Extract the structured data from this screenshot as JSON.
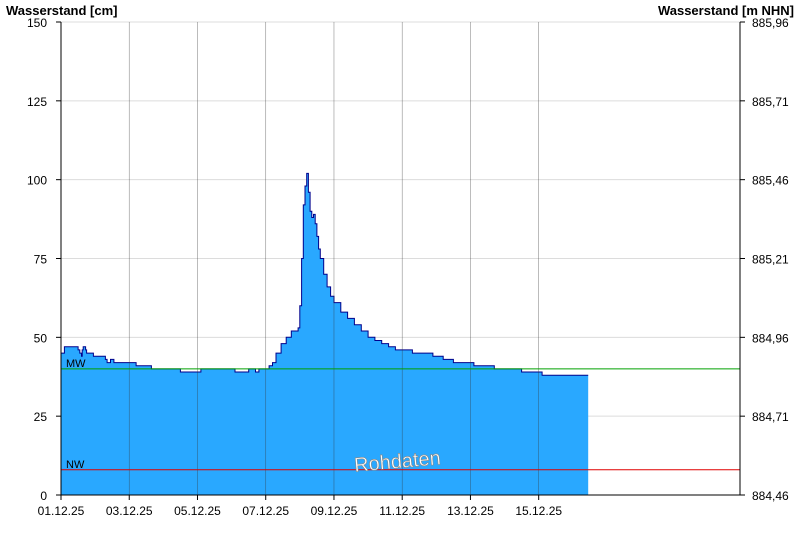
{
  "header": {
    "left_axis_title": "Wasserstand [cm]",
    "right_axis_title": "Wasserstand [m NHN]"
  },
  "chart_data": {
    "type": "area",
    "ylim": [
      0,
      150
    ],
    "y_ticks": [
      0,
      25,
      50,
      75,
      100,
      125,
      150
    ],
    "y_tick_labels": [
      "0",
      "25",
      "50",
      "75",
      "100",
      "125",
      "150"
    ],
    "y2_ticks": [
      0,
      25,
      50,
      75,
      100,
      125,
      150
    ],
    "y2_tick_labels": [
      "884,46",
      "884,71",
      "884,96",
      "885,21",
      "885,46",
      "885,71",
      "885,96"
    ],
    "x_range_days": [
      1.0,
      20.9
    ],
    "x_ticks": [
      1,
      3,
      5,
      7,
      9,
      11,
      13,
      15
    ],
    "x_tick_labels": [
      "01.12.25",
      "03.12.25",
      "05.12.25",
      "07.12.25",
      "09.12.25",
      "11.12.25",
      "13.12.25",
      "15.12.25"
    ],
    "series": [
      {
        "x": [
          1.0,
          1.1,
          1.15,
          1.45,
          1.5,
          1.55,
          1.6,
          1.62,
          1.65,
          1.7,
          1.72,
          1.75,
          1.85,
          1.95,
          2.05,
          2.3,
          2.35,
          2.45,
          2.55,
          2.65,
          2.8,
          3.0,
          3.2,
          3.5,
          3.65,
          3.75,
          4.0,
          4.5,
          4.7,
          5.0,
          5.1,
          5.5,
          5.9,
          6.1,
          6.35,
          6.5,
          6.7,
          6.8,
          7.0,
          7.1,
          7.2,
          7.3,
          7.45,
          7.6,
          7.75,
          7.85,
          7.95,
          8.0,
          8.05,
          8.1,
          8.15,
          8.2,
          8.25,
          8.3,
          8.35,
          8.4,
          8.45,
          8.5,
          8.55,
          8.6,
          8.7,
          8.8,
          8.9,
          9.0,
          9.2,
          9.4,
          9.6,
          9.8,
          10.0,
          10.2,
          10.4,
          10.6,
          10.8,
          11.0,
          11.3,
          11.6,
          11.9,
          12.2,
          12.5,
          12.8,
          13.1,
          13.5,
          13.7,
          14.0,
          14.3,
          14.5,
          14.8,
          15.0,
          15.1,
          16.45
        ],
        "values": [
          45,
          47,
          47,
          47,
          46,
          45,
          44,
          46,
          47,
          47,
          46,
          45,
          45,
          44,
          44,
          43,
          42,
          43,
          42,
          42,
          42,
          42,
          41,
          41,
          40,
          40,
          40,
          39,
          39,
          39,
          40,
          40,
          40,
          39,
          39,
          40,
          39,
          40,
          40,
          41,
          42,
          45,
          48,
          50,
          52,
          52,
          53,
          60,
          75,
          92,
          98,
          102,
          96,
          90,
          88,
          89,
          86,
          82,
          78,
          75,
          70,
          66,
          63,
          61,
          58,
          56,
          54,
          52,
          50,
          49,
          48,
          47,
          46,
          46,
          45,
          45,
          44,
          43,
          42,
          42,
          41,
          41,
          40,
          40,
          40,
          39,
          39,
          39,
          38,
          38
        ],
        "color": "#29a8ff",
        "line_color": "#00008b"
      }
    ],
    "reference_lines": [
      {
        "label": "MW",
        "value": 40,
        "color": "#00a000"
      },
      {
        "label": "NW",
        "value": 8,
        "color": "#e00000"
      }
    ],
    "watermark": "Rohdaten",
    "grid": true
  }
}
